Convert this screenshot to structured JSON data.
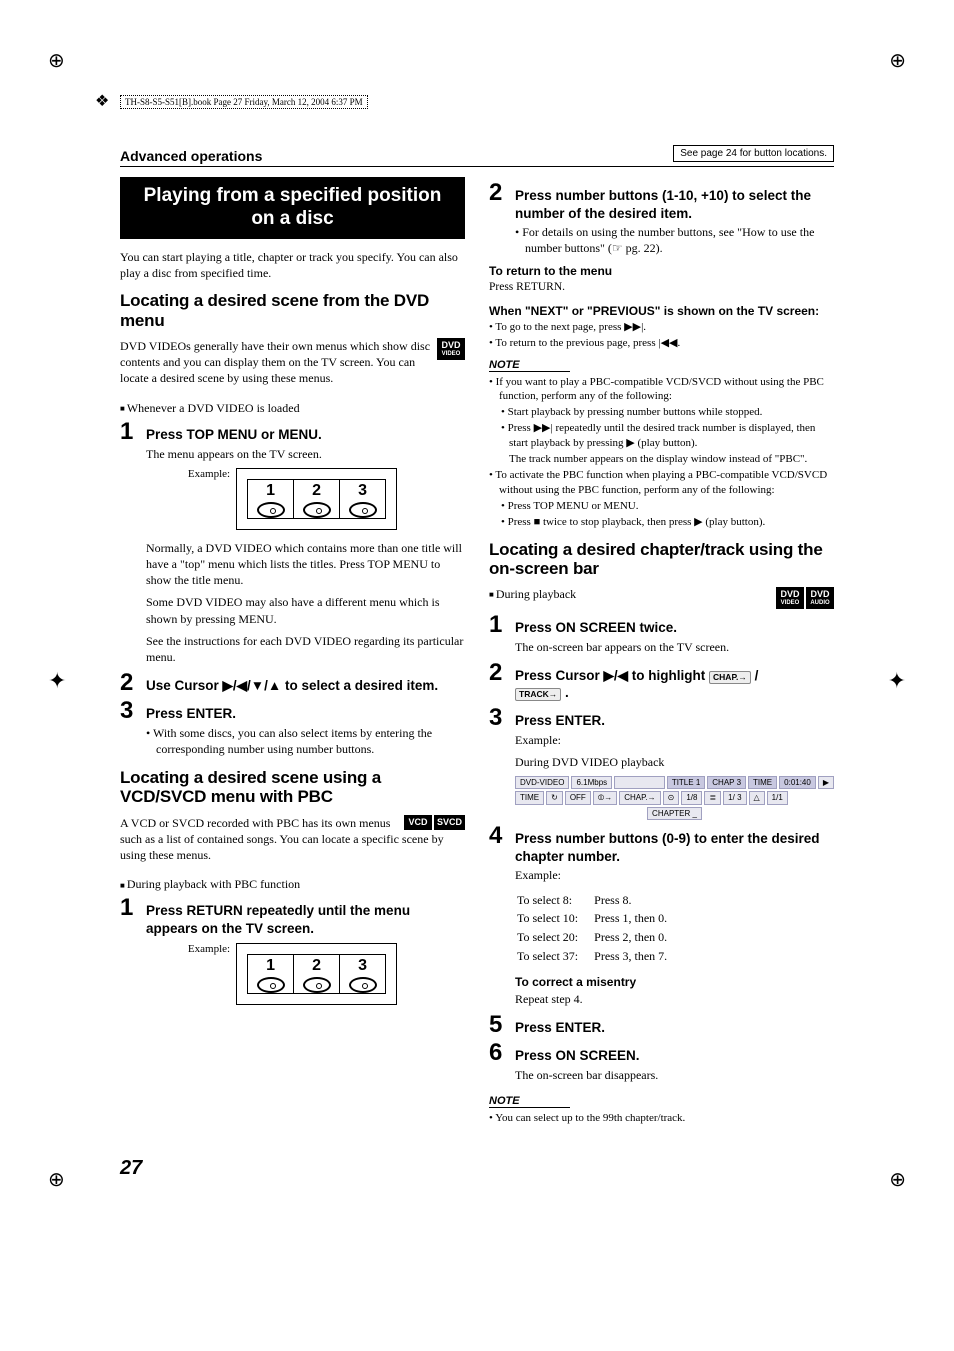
{
  "meta": {
    "book_header": "TH-S8-S5-S51[B].book  Page 27  Friday, March 12, 2004  6:37 PM"
  },
  "header": {
    "section": "Advanced operations",
    "note": "See page 24 for button locations."
  },
  "page_number": "27",
  "left": {
    "title": "Playing from a specified position on a disc",
    "intro": "You can start playing a title, chapter or track you specify. You can also play a disc from specified time.",
    "sec1": {
      "heading": "Locating a desired scene from the DVD menu",
      "desc": "DVD VIDEOs generally have their own menus which show disc contents and you can display them on the TV screen. You can locate a desired scene by using these menus.",
      "badge": {
        "top": "DVD",
        "sub": "VIDEO"
      },
      "context": "Whenever a DVD VIDEO is loaded",
      "step1": {
        "num": "1",
        "title": "Press TOP MENU or MENU.",
        "d1": "The menu appears on the TV screen.",
        "ex_label": "Example:",
        "menu": [
          "1",
          "2",
          "3"
        ],
        "d2": "Normally, a DVD VIDEO which contains more than one title will have a \"top\" menu which lists the titles. Press TOP MENU to show the title menu.",
        "d3": "Some DVD VIDEO may also have a different menu which is shown by pressing MENU.",
        "d4": "See the instructions for each DVD VIDEO regarding its particular menu."
      },
      "step2": {
        "num": "2",
        "title": "Use Cursor ▶/◀/▼/▲ to select a desired item."
      },
      "step3": {
        "num": "3",
        "title": "Press ENTER.",
        "d1": "• With some discs, you can also select items by entering the corresponding number using number buttons."
      }
    },
    "sec2": {
      "heading": "Locating a desired scene using a VCD/SVCD menu with PBC",
      "desc": "A VCD or SVCD recorded with PBC has its own menus such as a list of contained songs. You can locate a specific scene by using these menus.",
      "badge1": {
        "top": "VCD"
      },
      "badge2": {
        "top": "SVCD"
      },
      "context": "During playback with PBC function",
      "step1": {
        "num": "1",
        "title": "Press RETURN repeatedly until the menu appears on the TV screen.",
        "ex_label": "Example:",
        "menu": [
          "1",
          "2",
          "3"
        ]
      }
    }
  },
  "right": {
    "step2": {
      "num": "2",
      "title": "Press number buttons (1-10, +10) to select the number of the desired item.",
      "d1": "• For details on using the number buttons, see \"How to use the number buttons\" (☞ pg. 22)."
    },
    "return": {
      "head": "To return to the menu",
      "body": "Press RETURN."
    },
    "nextprev": {
      "head": "When \"NEXT\" or \"PREVIOUS\" is shown on the TV screen:",
      "b1": "• To go to the next page, press ▶▶|.",
      "b2": "• To return to the previous page, press |◀◀."
    },
    "note1": {
      "label": "NOTE",
      "b1": "• If you want to play a PBC-compatible VCD/SVCD without using the PBC function, perform any of the following:",
      "s1": "• Start playback by pressing number buttons while stopped.",
      "s2": "• Press ▶▶| repeatedly until the desired track number is displayed, then start playback by pressing ▶ (play button).",
      "s3": "The track number appears on the display window instead of \"PBC\".",
      "b2": "• To activate the PBC function when playing a PBC-compatible VCD/SVCD without using the PBC function, perform any of the following:",
      "s4": "• Press TOP MENU or MENU.",
      "s5": "• Press ■ twice to stop playback, then press ▶ (play button)."
    },
    "sec3": {
      "heading": "Locating a desired chapter/track using the on-screen bar",
      "context": "During playback",
      "badge1": {
        "top": "DVD",
        "sub": "VIDEO"
      },
      "badge2": {
        "top": "DVD",
        "sub": "AUDIO"
      },
      "step1": {
        "num": "1",
        "title": "Press ON SCREEN twice.",
        "d1": "The on-screen bar appears on the TV screen."
      },
      "step2": {
        "num": "2",
        "title_a": "Press Cursor ▶/◀ to highlight ",
        "chip1": "CHAP.→",
        "title_b": " /",
        "chip2": "TRACK→",
        "title_c": " ."
      },
      "step3": {
        "num": "3",
        "title": "Press ENTER.",
        "ex_label": "Example:",
        "d1": "During DVD VIDEO playback",
        "bar_r1": [
          "DVD-VIDEO",
          "6.1Mbps",
          "",
          "TITLE 1",
          "CHAP 3",
          "TIME",
          "0:01:40",
          "▶"
        ],
        "bar_r2": [
          "TIME",
          "↻",
          "OFF",
          "⦷→",
          "CHAP.→",
          "⊙",
          "1/8",
          "≣",
          "1/ 3",
          "△",
          "1/1"
        ],
        "bar_r3": "CHAPTER   _"
      },
      "step4": {
        "num": "4",
        "title": "Press number buttons (0-9) to enter the desired chapter number.",
        "ex_label": "Example:",
        "rows": [
          [
            "To select 8:",
            "Press 8."
          ],
          [
            "To select 10:",
            "Press 1, then 0."
          ],
          [
            "To select 20:",
            "Press 2, then 0."
          ],
          [
            "To select 37:",
            "Press 3, then 7."
          ]
        ],
        "correct_head": "To correct a misentry",
        "correct_body": "Repeat step 4."
      },
      "step5": {
        "num": "5",
        "title": "Press ENTER."
      },
      "step6": {
        "num": "6",
        "title": "Press ON SCREEN.",
        "d1": "The on-screen bar disappears."
      }
    },
    "note2": {
      "label": "NOTE",
      "b1": "• You can select up to the 99th chapter/track."
    }
  }
}
